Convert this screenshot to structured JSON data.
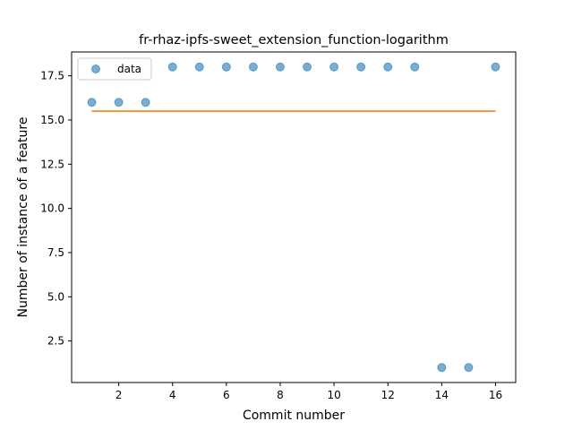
{
  "chart_data": {
    "type": "scatter",
    "title": "fr-rhaz-ipfs-sweet_extension_function-logarithm",
    "xlabel": "Commit number",
    "ylabel": "Number of instance of a feature",
    "xlim": [
      0.25,
      16.75
    ],
    "ylim": [
      0.15,
      18.85
    ],
    "xticks": [
      2,
      4,
      6,
      8,
      10,
      12,
      14,
      16
    ],
    "xtick_labels": [
      "2",
      "4",
      "6",
      "8",
      "10",
      "12",
      "14",
      "16"
    ],
    "yticks": [
      2.5,
      5.0,
      7.5,
      10.0,
      12.5,
      15.0,
      17.5
    ],
    "ytick_labels": [
      "2.5",
      "5.0",
      "7.5",
      "10.0",
      "12.5",
      "15.0",
      "17.5"
    ],
    "grid": false,
    "legend_position": "upper-left",
    "series": [
      {
        "name": "data",
        "kind": "scatter",
        "color": "#1f77b4",
        "x": [
          1,
          2,
          3,
          4,
          5,
          6,
          7,
          8,
          9,
          10,
          11,
          12,
          13,
          14,
          15,
          16
        ],
        "y": [
          16,
          16,
          16,
          18,
          18,
          18,
          18,
          18,
          18,
          18,
          18,
          18,
          18,
          1,
          1,
          18
        ]
      },
      {
        "kind": "line",
        "color": "#ff7f0e",
        "x": [
          1,
          16
        ],
        "y": [
          15.5,
          15.5
        ]
      }
    ]
  }
}
